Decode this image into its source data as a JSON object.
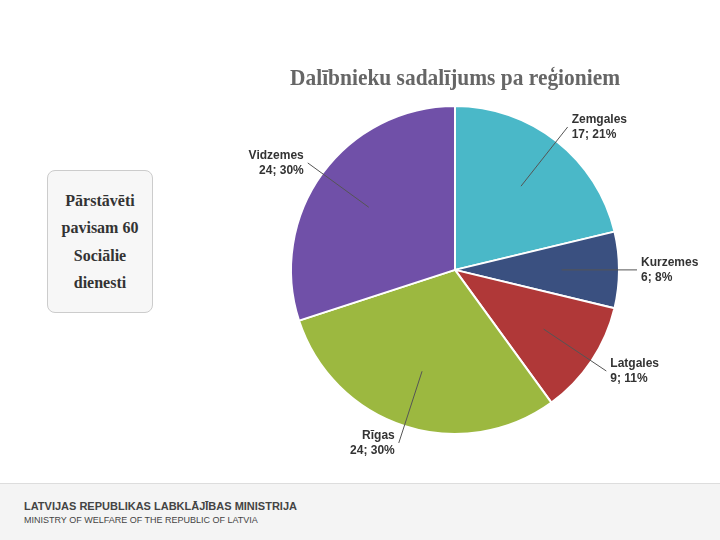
{
  "chart_data": {
    "type": "pie",
    "title": "Dalībnieku sadalījums pa reģioniem",
    "categories": [
      "Zemgales",
      "Kurzemes",
      "Latgales",
      "Rīgas",
      "Vidzemes"
    ],
    "values": [
      17,
      6,
      9,
      24,
      24
    ],
    "value_labels": [
      "17; 21%",
      "6; 8%",
      "9; 11%",
      "24; 30%",
      "24; 30%"
    ],
    "colors": [
      "#4ab8c8",
      "#3a5080",
      "#b03838",
      "#9cb840",
      "#7050a8"
    ],
    "data_labels": true,
    "annotations": [
      "LATVIJAS REPUBLIKAS LABKLĀJĪBAS MINISTRIJA",
      "MINISTRY OF WELFARE OF THE REPUBLIC OF LATVIA",
      "Pārstāvēti\npavisam 60\nSociālie\ndienesti"
    ]
  }
}
